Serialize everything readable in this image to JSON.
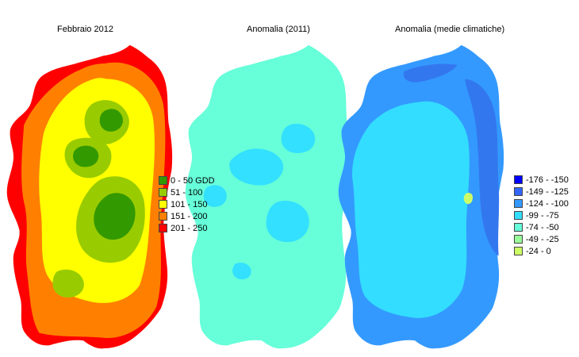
{
  "maps": {
    "feb2012": {
      "title": "Febbraio 2012",
      "colors": {
        "red": "#ff0000",
        "orange": "#ff8000",
        "yellow": "#ffff00",
        "lightgreen": "#99cc00",
        "green": "#339900"
      }
    },
    "anom2011": {
      "title": "Anomalia (2011)",
      "colors": {
        "base": "#66ffd9",
        "mid": "#33e0ff"
      }
    },
    "anomclim": {
      "title": "Anomalia (medie climatiche)",
      "colors": {
        "base": "#33ddff",
        "mid": "#3399ff",
        "dark": "#3377ee",
        "light": "#ccff66"
      }
    }
  },
  "legend1": [
    {
      "label": "0 - 50 GDD",
      "color": "#339900"
    },
    {
      "label": "51 - 100",
      "color": "#99cc00"
    },
    {
      "label": "101 - 150",
      "color": "#ffff00"
    },
    {
      "label": "151 - 200",
      "color": "#ff8000"
    },
    {
      "label": "201 - 250",
      "color": "#ff0000"
    }
  ],
  "legend2": [
    {
      "label": "-176 - -150",
      "color": "#0000ff"
    },
    {
      "label": "-149 - -125",
      "color": "#3366ff"
    },
    {
      "label": "-124 - -100",
      "color": "#3399ff"
    },
    {
      "label": "-99 - -75",
      "color": "#33ddff"
    },
    {
      "label": "-74 - -50",
      "color": "#66ffd9"
    },
    {
      "label": "-49 - -25",
      "color": "#99ff99"
    },
    {
      "label": "-24 - 0",
      "color": "#ccff66"
    }
  ]
}
